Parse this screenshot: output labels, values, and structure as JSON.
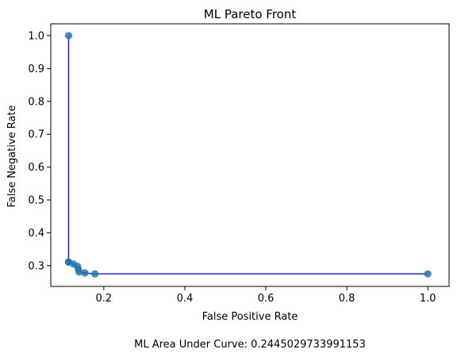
{
  "chart_data": {
    "type": "line",
    "title": "ML Pareto Front",
    "xlabel": "False Positive Rate",
    "ylabel": "False Negative Rate",
    "xlim": [
      0.069,
      1.0525
    ],
    "ylim": [
      0.237,
      1.036
    ],
    "xticks": [
      0.2,
      0.4,
      0.6,
      0.8,
      1.0
    ],
    "yticks": [
      0.3,
      0.4,
      0.5,
      0.6,
      0.7,
      0.8,
      0.9,
      1.0
    ],
    "xtick_labels": [
      "0.2",
      "0.4",
      "0.6",
      "0.8",
      "1.0"
    ],
    "ytick_labels": [
      "0.3",
      "0.4",
      "0.5",
      "0.6",
      "0.7",
      "0.8",
      "0.9",
      "1.0"
    ],
    "grid": false,
    "legend": "none",
    "line_color": "#0000ff",
    "marker_color": "#1f77b4",
    "series": [
      {
        "x": [
          0.113,
          0.113,
          0.113,
          0.125,
          0.135,
          0.137,
          0.139,
          0.153,
          0.178,
          1.0
        ],
        "y": [
          1.0,
          0.311,
          0.311,
          0.305,
          0.298,
          0.289,
          0.281,
          0.278,
          0.275,
          0.275
        ]
      }
    ],
    "caption": "ML Area Under Curve: 0.2445029733991153"
  }
}
